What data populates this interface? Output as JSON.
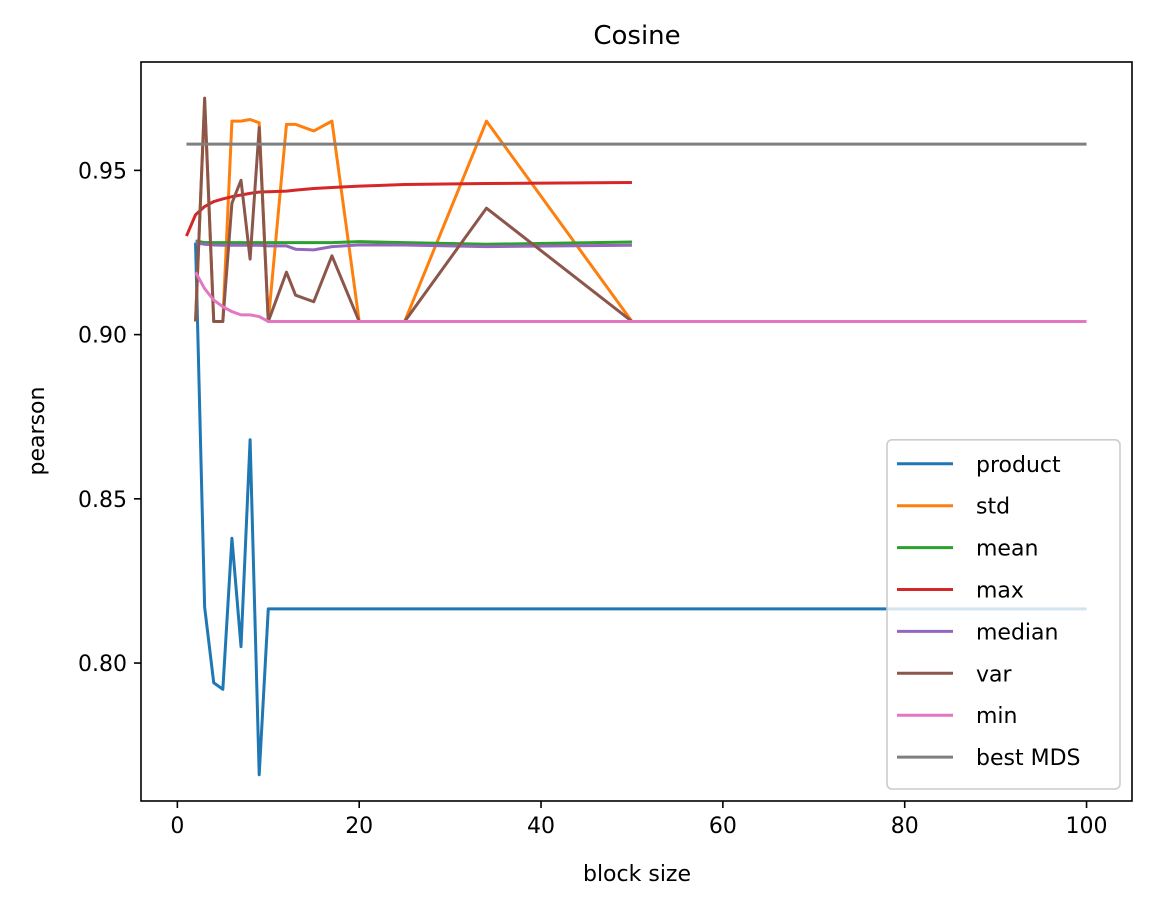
{
  "chart_data": {
    "type": "line",
    "title": "Cosine",
    "xlabel": "block size",
    "ylabel": "pearson",
    "xlim": [
      -4,
      105
    ],
    "ylim": [
      0.758,
      0.983
    ],
    "xticks": [
      0,
      20,
      40,
      60,
      80,
      100
    ],
    "yticks": [
      0.8,
      0.85,
      0.9,
      0.95
    ],
    "xtick_labels": [
      "0",
      "20",
      "40",
      "60",
      "80",
      "100"
    ],
    "ytick_labels": [
      "0.80",
      "0.85",
      "0.90",
      "0.95"
    ],
    "grid": false,
    "legend_position": "lower right",
    "series": [
      {
        "name": "product",
        "color": "#1f77b4",
        "x": [
          2,
          3,
          4,
          5,
          6,
          7,
          8,
          9,
          10,
          12,
          15,
          20,
          25,
          34,
          50,
          100
        ],
        "y": [
          0.928,
          0.817,
          0.794,
          0.792,
          0.838,
          0.805,
          0.868,
          0.766,
          0.8165,
          0.8165,
          0.8165,
          0.8165,
          0.8165,
          0.8165,
          0.8165,
          0.8165
        ]
      },
      {
        "name": "std",
        "color": "#ff7f0e",
        "x": [
          2,
          3,
          4,
          5,
          6,
          7,
          8,
          9,
          10,
          12,
          13,
          15,
          17,
          20,
          25,
          34,
          50
        ],
        "y": [
          0.904,
          0.971,
          0.904,
          0.904,
          0.965,
          0.965,
          0.9655,
          0.9645,
          0.904,
          0.964,
          0.964,
          0.962,
          0.965,
          0.904,
          0.904,
          0.965,
          0.904
        ]
      },
      {
        "name": "mean",
        "color": "#2ca02c",
        "x": [
          2,
          3,
          4,
          5,
          6,
          7,
          8,
          9,
          10,
          12,
          15,
          17,
          20,
          25,
          34,
          50
        ],
        "y": [
          0.9285,
          0.928,
          0.928,
          0.928,
          0.928,
          0.928,
          0.928,
          0.928,
          0.928,
          0.928,
          0.928,
          0.928,
          0.9283,
          0.928,
          0.9275,
          0.9282
        ]
      },
      {
        "name": "max",
        "color": "#d62728",
        "x": [
          1,
          2,
          3,
          4,
          5,
          6,
          7,
          8,
          9,
          10,
          12,
          13,
          15,
          17,
          20,
          25,
          34,
          50
        ],
        "y": [
          0.93,
          0.9365,
          0.939,
          0.9405,
          0.9413,
          0.942,
          0.9425,
          0.943,
          0.9434,
          0.9435,
          0.9437,
          0.944,
          0.9445,
          0.9448,
          0.9452,
          0.9457,
          0.946,
          0.9463
        ]
      },
      {
        "name": "median",
        "color": "#9467bd",
        "x": [
          2,
          3,
          4,
          5,
          6,
          7,
          8,
          9,
          10,
          12,
          13,
          15,
          17,
          20,
          25,
          34,
          50
        ],
        "y": [
          0.928,
          0.9275,
          0.9273,
          0.9272,
          0.9272,
          0.9272,
          0.9272,
          0.9272,
          0.927,
          0.927,
          0.926,
          0.9258,
          0.9268,
          0.9273,
          0.9273,
          0.9268,
          0.9272
        ]
      },
      {
        "name": "var",
        "color": "#8c564b",
        "x": [
          2,
          3,
          4,
          5,
          6,
          7,
          8,
          9,
          10,
          12,
          13,
          15,
          17,
          20,
          25,
          34,
          50
        ],
        "y": [
          0.904,
          0.972,
          0.904,
          0.904,
          0.94,
          0.947,
          0.923,
          0.963,
          0.904,
          0.919,
          0.912,
          0.91,
          0.924,
          0.904,
          0.904,
          0.9385,
          0.904
        ]
      },
      {
        "name": "min",
        "color": "#e377c2",
        "x": [
          2,
          3,
          4,
          5,
          6,
          7,
          8,
          9,
          10,
          12,
          15,
          20,
          25,
          34,
          50,
          100
        ],
        "y": [
          0.919,
          0.914,
          0.9105,
          0.9085,
          0.907,
          0.906,
          0.906,
          0.9055,
          0.904,
          0.904,
          0.904,
          0.904,
          0.904,
          0.904,
          0.904,
          0.904
        ]
      },
      {
        "name": "best MDS",
        "color": "#7f7f7f",
        "x": [
          1,
          100
        ],
        "y": [
          0.958,
          0.958
        ]
      }
    ]
  }
}
